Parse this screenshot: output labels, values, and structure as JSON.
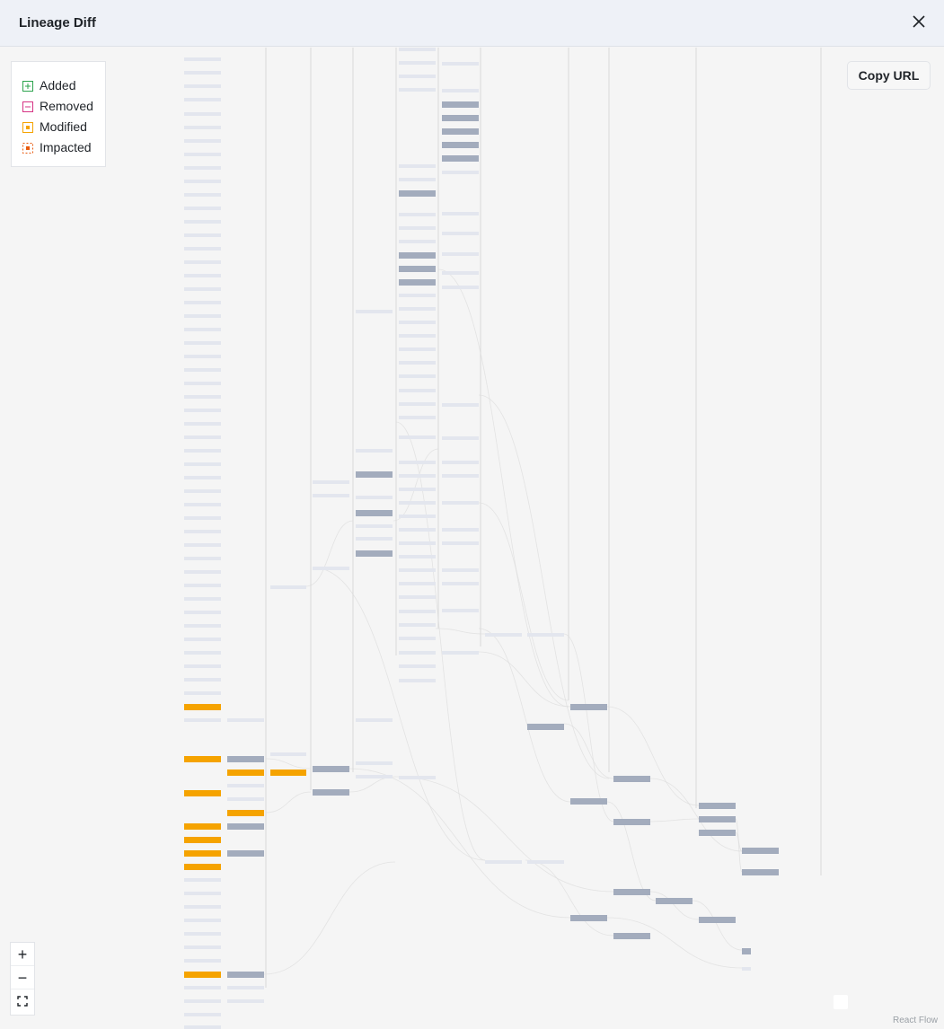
{
  "header": {
    "title": "Lineage Diff"
  },
  "legend": {
    "items": [
      {
        "label": "Added",
        "color": "#2da44e",
        "icon": "plus-square-icon"
      },
      {
        "label": "Removed",
        "color": "#d63384",
        "icon": "minus-square-icon"
      },
      {
        "label": "Modified",
        "color": "#f5a300",
        "icon": "dot-square-icon"
      },
      {
        "label": "Impacted",
        "color": "#e8590c",
        "icon": "dashed-dot-square-icon"
      }
    ]
  },
  "toolbar": {
    "copy_url_label": "Copy URL"
  },
  "controls": {
    "zoom_in": "+",
    "zoom_out": "−"
  },
  "attribution": "React Flow",
  "colors": {
    "modified": "#f5a300",
    "impacted": "#a3acbd",
    "unchanged": "#e3e6ee",
    "edge": "#dcdcdc"
  }
}
